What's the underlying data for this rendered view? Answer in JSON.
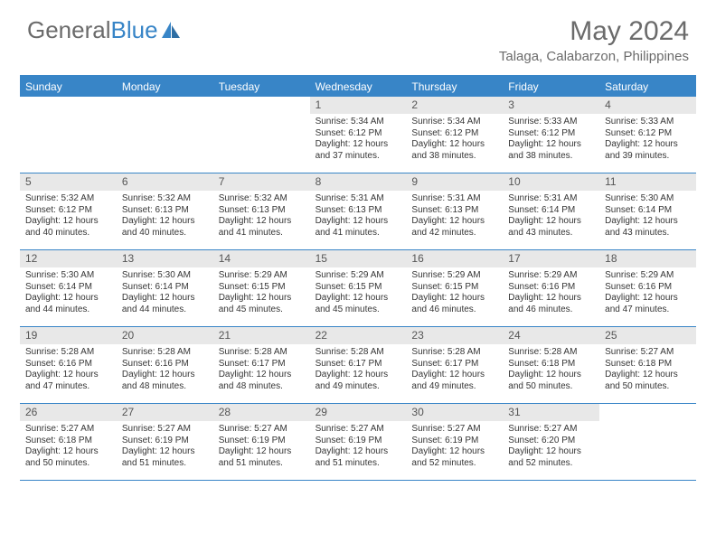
{
  "brand": {
    "part1": "General",
    "part2": "Blue"
  },
  "title": "May 2024",
  "location": "Talaga, Calabarzon, Philippines",
  "colors": {
    "accent": "#3885c7",
    "text_muted": "#6b6b6b",
    "text_body": "#353535",
    "daynum_bg": "#e8e8e8",
    "bg": "#ffffff"
  },
  "day_names": [
    "Sunday",
    "Monday",
    "Tuesday",
    "Wednesday",
    "Thursday",
    "Friday",
    "Saturday"
  ],
  "weeks": [
    [
      null,
      null,
      null,
      {
        "n": "1",
        "sunrise": "5:34 AM",
        "sunset": "6:12 PM",
        "daylight": "12 hours and 37 minutes."
      },
      {
        "n": "2",
        "sunrise": "5:34 AM",
        "sunset": "6:12 PM",
        "daylight": "12 hours and 38 minutes."
      },
      {
        "n": "3",
        "sunrise": "5:33 AM",
        "sunset": "6:12 PM",
        "daylight": "12 hours and 38 minutes."
      },
      {
        "n": "4",
        "sunrise": "5:33 AM",
        "sunset": "6:12 PM",
        "daylight": "12 hours and 39 minutes."
      }
    ],
    [
      {
        "n": "5",
        "sunrise": "5:32 AM",
        "sunset": "6:12 PM",
        "daylight": "12 hours and 40 minutes."
      },
      {
        "n": "6",
        "sunrise": "5:32 AM",
        "sunset": "6:13 PM",
        "daylight": "12 hours and 40 minutes."
      },
      {
        "n": "7",
        "sunrise": "5:32 AM",
        "sunset": "6:13 PM",
        "daylight": "12 hours and 41 minutes."
      },
      {
        "n": "8",
        "sunrise": "5:31 AM",
        "sunset": "6:13 PM",
        "daylight": "12 hours and 41 minutes."
      },
      {
        "n": "9",
        "sunrise": "5:31 AM",
        "sunset": "6:13 PM",
        "daylight": "12 hours and 42 minutes."
      },
      {
        "n": "10",
        "sunrise": "5:31 AM",
        "sunset": "6:14 PM",
        "daylight": "12 hours and 43 minutes."
      },
      {
        "n": "11",
        "sunrise": "5:30 AM",
        "sunset": "6:14 PM",
        "daylight": "12 hours and 43 minutes."
      }
    ],
    [
      {
        "n": "12",
        "sunrise": "5:30 AM",
        "sunset": "6:14 PM",
        "daylight": "12 hours and 44 minutes."
      },
      {
        "n": "13",
        "sunrise": "5:30 AM",
        "sunset": "6:14 PM",
        "daylight": "12 hours and 44 minutes."
      },
      {
        "n": "14",
        "sunrise": "5:29 AM",
        "sunset": "6:15 PM",
        "daylight": "12 hours and 45 minutes."
      },
      {
        "n": "15",
        "sunrise": "5:29 AM",
        "sunset": "6:15 PM",
        "daylight": "12 hours and 45 minutes."
      },
      {
        "n": "16",
        "sunrise": "5:29 AM",
        "sunset": "6:15 PM",
        "daylight": "12 hours and 46 minutes."
      },
      {
        "n": "17",
        "sunrise": "5:29 AM",
        "sunset": "6:16 PM",
        "daylight": "12 hours and 46 minutes."
      },
      {
        "n": "18",
        "sunrise": "5:29 AM",
        "sunset": "6:16 PM",
        "daylight": "12 hours and 47 minutes."
      }
    ],
    [
      {
        "n": "19",
        "sunrise": "5:28 AM",
        "sunset": "6:16 PM",
        "daylight": "12 hours and 47 minutes."
      },
      {
        "n": "20",
        "sunrise": "5:28 AM",
        "sunset": "6:16 PM",
        "daylight": "12 hours and 48 minutes."
      },
      {
        "n": "21",
        "sunrise": "5:28 AM",
        "sunset": "6:17 PM",
        "daylight": "12 hours and 48 minutes."
      },
      {
        "n": "22",
        "sunrise": "5:28 AM",
        "sunset": "6:17 PM",
        "daylight": "12 hours and 49 minutes."
      },
      {
        "n": "23",
        "sunrise": "5:28 AM",
        "sunset": "6:17 PM",
        "daylight": "12 hours and 49 minutes."
      },
      {
        "n": "24",
        "sunrise": "5:28 AM",
        "sunset": "6:18 PM",
        "daylight": "12 hours and 50 minutes."
      },
      {
        "n": "25",
        "sunrise": "5:27 AM",
        "sunset": "6:18 PM",
        "daylight": "12 hours and 50 minutes."
      }
    ],
    [
      {
        "n": "26",
        "sunrise": "5:27 AM",
        "sunset": "6:18 PM",
        "daylight": "12 hours and 50 minutes."
      },
      {
        "n": "27",
        "sunrise": "5:27 AM",
        "sunset": "6:19 PM",
        "daylight": "12 hours and 51 minutes."
      },
      {
        "n": "28",
        "sunrise": "5:27 AM",
        "sunset": "6:19 PM",
        "daylight": "12 hours and 51 minutes."
      },
      {
        "n": "29",
        "sunrise": "5:27 AM",
        "sunset": "6:19 PM",
        "daylight": "12 hours and 51 minutes."
      },
      {
        "n": "30",
        "sunrise": "5:27 AM",
        "sunset": "6:19 PM",
        "daylight": "12 hours and 52 minutes."
      },
      {
        "n": "31",
        "sunrise": "5:27 AM",
        "sunset": "6:20 PM",
        "daylight": "12 hours and 52 minutes."
      },
      null
    ]
  ],
  "labels": {
    "sunrise_prefix": "Sunrise: ",
    "sunset_prefix": "Sunset: ",
    "daylight_prefix": "Daylight: "
  }
}
